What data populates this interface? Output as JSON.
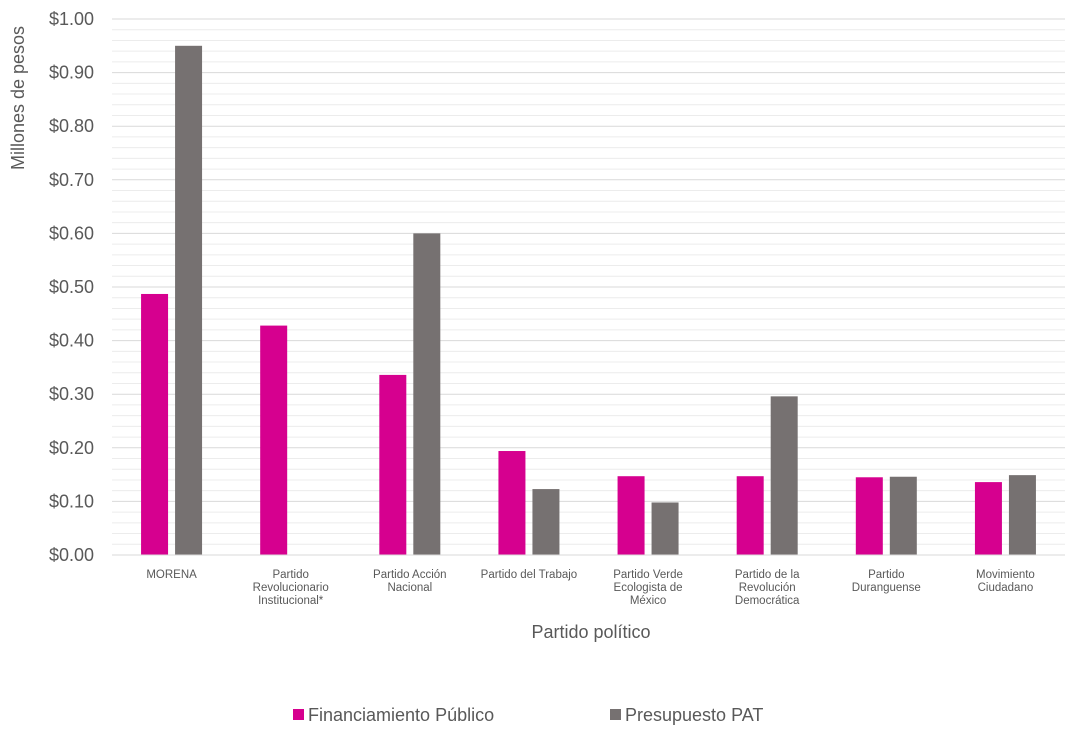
{
  "chart_data": {
    "type": "bar",
    "xlabel": "Partido político",
    "ylabel": "Millones de pesos",
    "ylim": [
      0,
      1.0
    ],
    "ytick_step": 0.1,
    "ytick_labels": [
      "$0.00",
      "$0.10",
      "$0.20",
      "$0.30",
      "$0.40",
      "$0.50",
      "$0.60",
      "$0.70",
      "$0.80",
      "$0.90",
      "$1.00"
    ],
    "categories": [
      [
        "MORENA"
      ],
      [
        "Partido",
        "Revolucionario",
        "Institucional*"
      ],
      [
        "Partido Acción",
        "Nacional"
      ],
      [
        "Partido del Trabajo"
      ],
      [
        "Partido Verde",
        "Ecologista de",
        "México"
      ],
      [
        "Partido de la",
        "Revolución",
        "Democrática"
      ],
      [
        "Partido",
        "Duranguense"
      ],
      [
        "Movimiento",
        "Ciudadano"
      ]
    ],
    "series": [
      {
        "name": "Financiamiento Público",
        "color": "#d6008f",
        "values": [
          0.487,
          0.428,
          0.336,
          0.194,
          0.147,
          0.147,
          0.145,
          0.136
        ]
      },
      {
        "name": "Presupuesto PAT",
        "color": "#767171",
        "values": [
          0.95,
          0.0,
          0.6,
          0.123,
          0.098,
          0.296,
          0.146,
          0.149
        ]
      }
    ],
    "grid": true,
    "legend": "bottom"
  }
}
